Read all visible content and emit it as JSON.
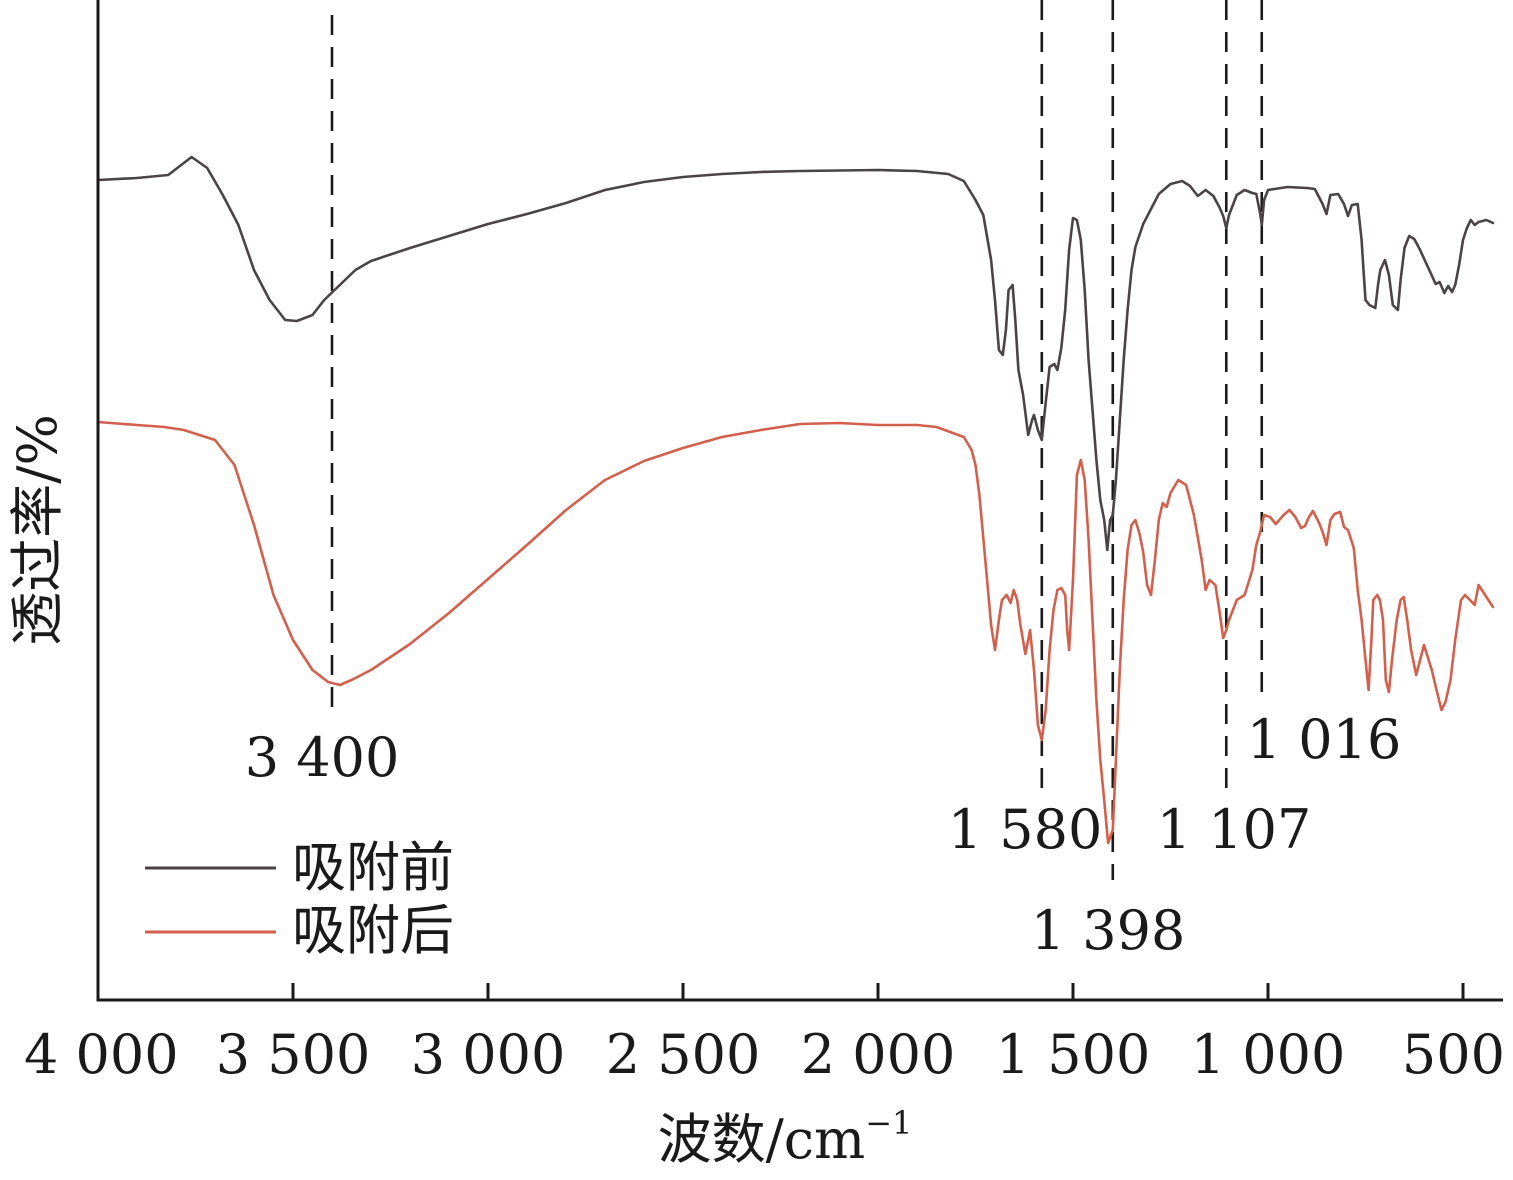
{
  "chart_data": {
    "type": "line",
    "title": "",
    "xlabel": "波数/cm",
    "xlabel_sup": "−1",
    "ylabel": "透过率/%",
    "xlim": [
      4000,
      420
    ],
    "ylim": [
      0,
      100
    ],
    "x_reversed": true,
    "grid": false,
    "legend_position": "bottom-left",
    "x_ticks": [
      {
        "value": 4000,
        "label": "4 000"
      },
      {
        "value": 3500,
        "label": "3 500"
      },
      {
        "value": 3000,
        "label": "3 000"
      },
      {
        "value": 2500,
        "label": "2 500"
      },
      {
        "value": 2000,
        "label": "2 000"
      },
      {
        "value": 1500,
        "label": "1 500"
      },
      {
        "value": 1000,
        "label": "1 000"
      },
      {
        "value": 500,
        "label": "500"
      }
    ],
    "annotations": [
      {
        "value": 3400,
        "label": "3 400"
      },
      {
        "value": 1580,
        "label": "1 580"
      },
      {
        "value": 1398,
        "label": "1 398"
      },
      {
        "value": 1107,
        "label": "1 107"
      },
      {
        "value": 1016,
        "label": "1 016"
      }
    ],
    "series": [
      {
        "name": "吸附前",
        "color": "#4a4446",
        "points": [
          [
            4000,
            82
          ],
          [
            3900,
            82.2
          ],
          [
            3820,
            82.5
          ],
          [
            3760,
            84.3
          ],
          [
            3720,
            83.2
          ],
          [
            3680,
            80.5
          ],
          [
            3640,
            77.5
          ],
          [
            3600,
            73
          ],
          [
            3560,
            70
          ],
          [
            3520,
            68
          ],
          [
            3490,
            67.9
          ],
          [
            3450,
            68.5
          ],
          [
            3420,
            70
          ],
          [
            3380,
            71.5
          ],
          [
            3340,
            73
          ],
          [
            3300,
            73.9
          ],
          [
            3200,
            75.2
          ],
          [
            3100,
            76.4
          ],
          [
            3000,
            77.6
          ],
          [
            2900,
            78.6
          ],
          [
            2800,
            79.7
          ],
          [
            2700,
            81
          ],
          [
            2600,
            81.8
          ],
          [
            2500,
            82.3
          ],
          [
            2400,
            82.6
          ],
          [
            2300,
            82.8
          ],
          [
            2200,
            82.9
          ],
          [
            2000,
            83
          ],
          [
            1900,
            82.9
          ],
          [
            1820,
            82.6
          ],
          [
            1780,
            81.9
          ],
          [
            1750,
            80
          ],
          [
            1730,
            78.5
          ],
          [
            1710,
            74
          ],
          [
            1700,
            70
          ],
          [
            1690,
            65
          ],
          [
            1680,
            64.5
          ],
          [
            1672,
            67
          ],
          [
            1665,
            71
          ],
          [
            1655,
            71.5
          ],
          [
            1648,
            68
          ],
          [
            1640,
            63
          ],
          [
            1628,
            60.5
          ],
          [
            1615,
            56.5
          ],
          [
            1605,
            58
          ],
          [
            1600,
            58.5
          ],
          [
            1590,
            57
          ],
          [
            1580,
            56
          ],
          [
            1572,
            59
          ],
          [
            1560,
            63.3
          ],
          [
            1548,
            63.6
          ],
          [
            1540,
            63
          ],
          [
            1530,
            65.2
          ],
          [
            1520,
            69
          ],
          [
            1510,
            75
          ],
          [
            1500,
            78.2
          ],
          [
            1490,
            78
          ],
          [
            1480,
            76
          ],
          [
            1470,
            71
          ],
          [
            1460,
            64
          ],
          [
            1450,
            59
          ],
          [
            1440,
            54
          ],
          [
            1430,
            50
          ],
          [
            1420,
            48
          ],
          [
            1412,
            45
          ],
          [
            1405,
            48
          ],
          [
            1398,
            48.5
          ],
          [
            1390,
            52
          ],
          [
            1380,
            58
          ],
          [
            1370,
            64
          ],
          [
            1360,
            69
          ],
          [
            1350,
            73
          ],
          [
            1340,
            75.3
          ],
          [
            1320,
            77.6
          ],
          [
            1300,
            79.1
          ],
          [
            1280,
            80.6
          ],
          [
            1250,
            81.6
          ],
          [
            1220,
            81.9
          ],
          [
            1200,
            81.4
          ],
          [
            1180,
            80.4
          ],
          [
            1160,
            81
          ],
          [
            1140,
            80.4
          ],
          [
            1125,
            79.3
          ],
          [
            1115,
            78.4
          ],
          [
            1107,
            77.2
          ],
          [
            1100,
            78.5
          ],
          [
            1080,
            80.5
          ],
          [
            1060,
            81
          ],
          [
            1040,
            80.7
          ],
          [
            1030,
            80.6
          ],
          [
            1020,
            78.6
          ],
          [
            1016,
            77.5
          ],
          [
            1010,
            80
          ],
          [
            1000,
            81
          ],
          [
            950,
            81.3
          ],
          [
            900,
            81.2
          ],
          [
            880,
            81.1
          ],
          [
            860,
            79.6
          ],
          [
            850,
            78.6
          ],
          [
            840,
            80.5
          ],
          [
            820,
            80.6
          ],
          [
            805,
            79.6
          ],
          [
            795,
            78.4
          ],
          [
            785,
            79.5
          ],
          [
            770,
            79.6
          ],
          [
            760,
            76
          ],
          [
            755,
            73
          ],
          [
            750,
            70
          ],
          [
            740,
            69.5
          ],
          [
            725,
            69.2
          ],
          [
            718,
            71.5
          ],
          [
            712,
            73
          ],
          [
            700,
            74
          ],
          [
            690,
            72.5
          ],
          [
            680,
            69.5
          ],
          [
            667,
            69
          ],
          [
            660,
            72
          ],
          [
            650,
            75.2
          ],
          [
            638,
            76.4
          ],
          [
            625,
            76.1
          ],
          [
            610,
            75
          ],
          [
            590,
            73.3
          ],
          [
            570,
            71.6
          ],
          [
            560,
            71.8
          ],
          [
            548,
            70.7
          ],
          [
            538,
            71.4
          ],
          [
            528,
            70.8
          ],
          [
            520,
            71.5
          ],
          [
            510,
            73.5
          ],
          [
            500,
            76
          ],
          [
            490,
            77.2
          ],
          [
            480,
            78
          ],
          [
            470,
            77.5
          ],
          [
            460,
            77.8
          ],
          [
            440,
            78
          ],
          [
            423,
            77.7
          ]
        ]
      },
      {
        "name": "吸附后",
        "color": "#d2604c",
        "points": [
          [
            4000,
            57.8
          ],
          [
            3900,
            57.5
          ],
          [
            3830,
            57.3
          ],
          [
            3780,
            57
          ],
          [
            3740,
            56.5
          ],
          [
            3700,
            56
          ],
          [
            3650,
            53.5
          ],
          [
            3600,
            47.5
          ],
          [
            3550,
            40.5
          ],
          [
            3500,
            36
          ],
          [
            3450,
            33
          ],
          [
            3410,
            31.8
          ],
          [
            3380,
            31.5
          ],
          [
            3350,
            32
          ],
          [
            3300,
            33
          ],
          [
            3250,
            34.3
          ],
          [
            3200,
            35.6
          ],
          [
            3100,
            38.7
          ],
          [
            3000,
            42.1
          ],
          [
            2900,
            45.5
          ],
          [
            2800,
            49
          ],
          [
            2700,
            52
          ],
          [
            2600,
            53.9
          ],
          [
            2500,
            55.2
          ],
          [
            2400,
            56.3
          ],
          [
            2300,
            57
          ],
          [
            2200,
            57.6
          ],
          [
            2100,
            57.7
          ],
          [
            2000,
            57.5
          ],
          [
            1900,
            57.5
          ],
          [
            1850,
            57.3
          ],
          [
            1780,
            56.3
          ],
          [
            1760,
            55
          ],
          [
            1750,
            53.5
          ],
          [
            1740,
            50.5
          ],
          [
            1725,
            44
          ],
          [
            1710,
            37.5
          ],
          [
            1700,
            35
          ],
          [
            1690,
            38
          ],
          [
            1682,
            40
          ],
          [
            1670,
            40.5
          ],
          [
            1660,
            39.7
          ],
          [
            1652,
            41
          ],
          [
            1643,
            40
          ],
          [
            1635,
            37.5
          ],
          [
            1622,
            34.6
          ],
          [
            1610,
            37
          ],
          [
            1600,
            33
          ],
          [
            1590,
            27.5
          ],
          [
            1580,
            26
          ],
          [
            1570,
            29
          ],
          [
            1560,
            35
          ],
          [
            1550,
            39
          ],
          [
            1540,
            41
          ],
          [
            1530,
            41.2
          ],
          [
            1520,
            40.5
          ],
          [
            1515,
            37
          ],
          [
            1510,
            35
          ],
          [
            1500,
            42
          ],
          [
            1490,
            52.5
          ],
          [
            1480,
            54
          ],
          [
            1470,
            52
          ],
          [
            1460,
            46
          ],
          [
            1450,
            38
          ],
          [
            1440,
            30
          ],
          [
            1430,
            24
          ],
          [
            1420,
            20
          ],
          [
            1410,
            15.7
          ],
          [
            1398,
            17
          ],
          [
            1390,
            24
          ],
          [
            1380,
            33
          ],
          [
            1370,
            40
          ],
          [
            1360,
            45
          ],
          [
            1350,
            47.5
          ],
          [
            1340,
            48
          ],
          [
            1330,
            46.7
          ],
          [
            1320,
            44.8
          ],
          [
            1310,
            41.5
          ],
          [
            1300,
            40.5
          ],
          [
            1290,
            44
          ],
          [
            1280,
            48
          ],
          [
            1270,
            49.7
          ],
          [
            1260,
            49.3
          ],
          [
            1250,
            50.7
          ],
          [
            1230,
            52
          ],
          [
            1210,
            51.5
          ],
          [
            1190,
            48.5
          ],
          [
            1170,
            44
          ],
          [
            1160,
            41
          ],
          [
            1150,
            42
          ],
          [
            1135,
            41.5
          ],
          [
            1125,
            39
          ],
          [
            1115,
            36.2
          ],
          [
            1107,
            37
          ],
          [
            1100,
            38
          ],
          [
            1080,
            40
          ],
          [
            1060,
            40.5
          ],
          [
            1040,
            43
          ],
          [
            1030,
            45.5
          ],
          [
            1020,
            46.8
          ],
          [
            1010,
            48.5
          ],
          [
            995,
            48.3
          ],
          [
            980,
            47.6
          ],
          [
            960,
            48.5
          ],
          [
            945,
            49
          ],
          [
            930,
            48.3
          ],
          [
            915,
            47.2
          ],
          [
            905,
            47.4
          ],
          [
            895,
            48.3
          ],
          [
            885,
            48.9
          ],
          [
            870,
            47.8
          ],
          [
            860,
            46.8
          ],
          [
            850,
            45.5
          ],
          [
            840,
            48
          ],
          [
            830,
            48.6
          ],
          [
            815,
            48.8
          ],
          [
            805,
            47.3
          ],
          [
            795,
            47
          ],
          [
            780,
            45.2
          ],
          [
            770,
            41
          ],
          [
            760,
            38
          ],
          [
            750,
            34
          ],
          [
            742,
            31
          ],
          [
            735,
            36
          ],
          [
            730,
            40
          ],
          [
            720,
            40.5
          ],
          [
            713,
            40
          ],
          [
            705,
            38
          ],
          [
            698,
            32
          ],
          [
            690,
            30.8
          ],
          [
            682,
            34
          ],
          [
            670,
            38
          ],
          [
            660,
            40
          ],
          [
            652,
            40.3
          ],
          [
            643,
            38
          ],
          [
            633,
            35
          ],
          [
            620,
            32.5
          ],
          [
            610,
            34
          ],
          [
            600,
            35.5
          ],
          [
            592,
            34.5
          ],
          [
            580,
            33
          ],
          [
            568,
            31
          ],
          [
            555,
            29
          ],
          [
            545,
            29.8
          ],
          [
            532,
            32
          ],
          [
            520,
            36
          ],
          [
            505,
            40
          ],
          [
            495,
            40.5
          ],
          [
            482,
            40
          ],
          [
            470,
            39.5
          ],
          [
            460,
            41.5
          ],
          [
            440,
            40.3
          ],
          [
            423,
            39.3
          ]
        ]
      }
    ]
  }
}
